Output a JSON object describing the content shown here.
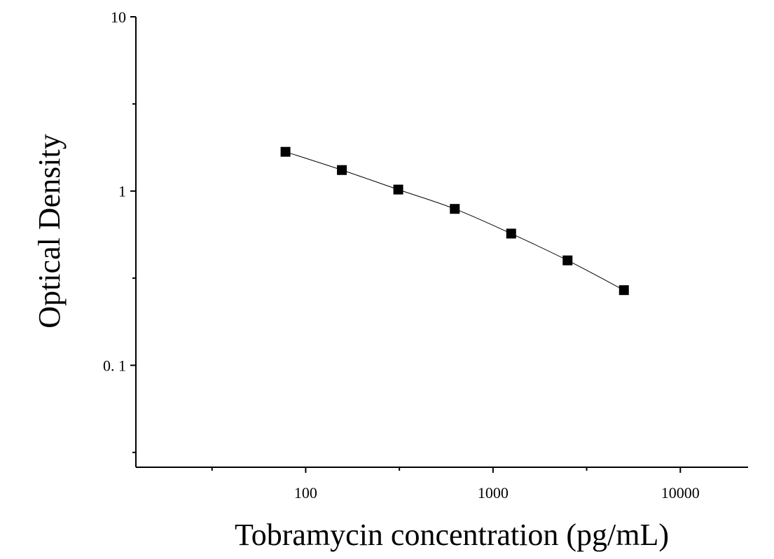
{
  "chart_data": {
    "type": "scatter",
    "title": "",
    "xlabel": "Tobramycin concentration (pg/mL)",
    "ylabel": "Optical Density",
    "x_scale": "log",
    "y_scale": "log",
    "xlim": [
      12.4,
      23000
    ],
    "ylim": [
      0.026,
      10
    ],
    "x_ticks": [
      {
        "value": 100,
        "label": "100"
      },
      {
        "value": 1000,
        "label": "1000"
      },
      {
        "value": 10000,
        "label": "10000"
      }
    ],
    "y_ticks": [
      {
        "value": 10,
        "label": "10"
      },
      {
        "value": 1,
        "label": "1"
      },
      {
        "value": 0.1,
        "label": "0. 1"
      }
    ],
    "grid": false,
    "legend": "none",
    "marker": "square",
    "color": "#000000",
    "series": [
      {
        "x": [
          78,
          156,
          312,
          625,
          1250,
          2500,
          5000
        ],
        "y": [
          1.68,
          1.32,
          1.02,
          0.79,
          0.57,
          0.4,
          0.27
        ]
      }
    ]
  }
}
